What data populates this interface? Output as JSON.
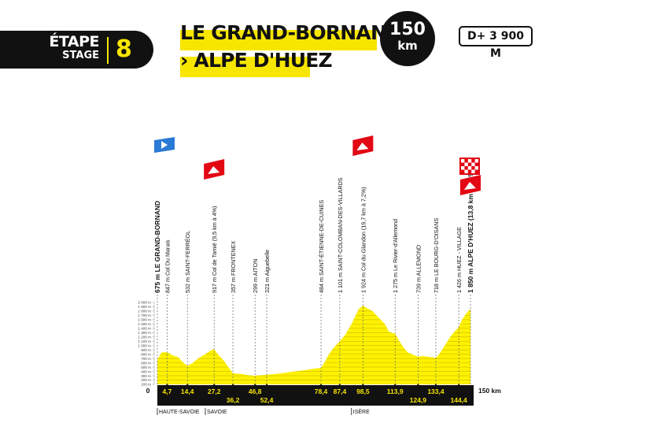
{
  "header": {
    "stage_word": "ÉTAPE",
    "stage_word_en": "STAGE",
    "stage_number": "8",
    "start_title": "LE GRAND-BORNAND",
    "finish_title": "› ALPE D'HUEZ",
    "distance_value": "150",
    "distance_unit": "km",
    "elevation_gain": "D+ 3 900 M"
  },
  "colors": {
    "profile_fill": "#fff200",
    "accent_yellow": "#f7e600",
    "black": "#111111",
    "start_flag_blue": "#2a7bd5",
    "climb_red": "#e30613"
  },
  "chart_data": {
    "type": "area",
    "title": "",
    "xlabel": "",
    "ylabel": "",
    "x_unit": "km",
    "y_unit": "m",
    "xlim": [
      0,
      150
    ],
    "ylim": [
      100,
      2000
    ],
    "y_ticks": [
      100,
      200,
      300,
      400,
      500,
      600,
      700,
      800,
      900,
      1000,
      1100,
      1200,
      1300,
      1400,
      1500,
      1600,
      1700,
      1800,
      1900,
      2000
    ],
    "y_tick_labels": [
      "100 m",
      "200 m",
      "300 m",
      "400 m",
      "500 m",
      "600 m",
      "700 m",
      "800 m",
      "900 m",
      "1 000 m",
      "1 100 m",
      "1 200 m",
      "1 300 m",
      "1 400 m",
      "1 500 m",
      "1 600 m",
      "1 700 m",
      "1 800 m",
      "1 900 m",
      "2 000 m"
    ],
    "x_start_label": "0",
    "x_end_label": "150 km",
    "profile": [
      [
        0,
        675
      ],
      [
        2,
        840
      ],
      [
        4.7,
        847
      ],
      [
        7,
        780
      ],
      [
        10,
        730
      ],
      [
        12,
        620
      ],
      [
        14.4,
        532
      ],
      [
        17,
        600
      ],
      [
        20,
        720
      ],
      [
        23,
        800
      ],
      [
        25,
        870
      ],
      [
        27.2,
        917
      ],
      [
        29,
        800
      ],
      [
        32,
        640
      ],
      [
        34,
        500
      ],
      [
        36.2,
        357
      ],
      [
        39,
        345
      ],
      [
        42,
        330
      ],
      [
        44,
        310
      ],
      [
        46.8,
        299
      ],
      [
        49,
        310
      ],
      [
        52.4,
        321
      ],
      [
        56,
        340
      ],
      [
        60,
        360
      ],
      [
        64,
        390
      ],
      [
        68,
        410
      ],
      [
        72,
        440
      ],
      [
        76,
        470
      ],
      [
        78.4,
        484
      ],
      [
        80,
        600
      ],
      [
        82,
        780
      ],
      [
        84,
        920
      ],
      [
        87.4,
        1101
      ],
      [
        90,
        1250
      ],
      [
        93,
        1500
      ],
      [
        95,
        1700
      ],
      [
        96.5,
        1850
      ],
      [
        98.5,
        1924
      ],
      [
        100,
        1880
      ],
      [
        103,
        1800
      ],
      [
        106,
        1650
      ],
      [
        109,
        1500
      ],
      [
        111,
        1320
      ],
      [
        113.9,
        1275
      ],
      [
        116,
        1100
      ],
      [
        118,
        950
      ],
      [
        120,
        840
      ],
      [
        122,
        800
      ],
      [
        124.9,
        739
      ],
      [
        127,
        760
      ],
      [
        130,
        740
      ],
      [
        133.4,
        718
      ],
      [
        135,
        800
      ],
      [
        137,
        950
      ],
      [
        139,
        1100
      ],
      [
        141,
        1250
      ],
      [
        144.4,
        1426
      ],
      [
        146,
        1600
      ],
      [
        148,
        1750
      ],
      [
        150,
        1850
      ]
    ],
    "waypoints": [
      {
        "km": 0,
        "label": "675 m LE GRAND-BORNAND",
        "type": "start"
      },
      {
        "km": 4.7,
        "label": "847 m Col Du Marais",
        "type": "pass"
      },
      {
        "km": 14.4,
        "label": "532 m SAINT-FERRÉOL",
        "type": "town"
      },
      {
        "km": 27.2,
        "label": "917 m Col de Tamié (9,5 km à 4%)",
        "type": "climb"
      },
      {
        "km": 36.2,
        "label": "357 m FRONTENEX",
        "type": "town"
      },
      {
        "km": 46.8,
        "label": "299 m AITON",
        "type": "town"
      },
      {
        "km": 52.4,
        "label": "321 m Aiguebelle",
        "type": "town"
      },
      {
        "km": 78.4,
        "label": "484 m SAINT-ÉTIENNE-DE-CUINES",
        "type": "town"
      },
      {
        "km": 87.4,
        "label": "1 101 m SAINT-COLOMBAN-DES-VILLARDS",
        "type": "town"
      },
      {
        "km": 98.5,
        "label": "1 924 m Col du Glandon (19,7 km à 7,2%)",
        "type": "climb"
      },
      {
        "km": 113.9,
        "label": "1 275 m Le Rivier-d'Allemond",
        "type": "town"
      },
      {
        "km": 124.9,
        "label": "739 m ALLEMOND",
        "type": "town"
      },
      {
        "km": 133.4,
        "label": "718 m LE BOURG-D'OISANS",
        "type": "town"
      },
      {
        "km": 144.4,
        "label": "1 426 m HUEZ - VILLAGE",
        "type": "town"
      },
      {
        "km": 150,
        "label": "1 850 m ALPE D'HUEZ (13,8 km à 8,1%)",
        "type": "finish"
      }
    ],
    "km_markers_upper": [
      {
        "km": 4.7,
        "label": "4,7"
      },
      {
        "km": 14.4,
        "label": "14,4"
      },
      {
        "km": 27.2,
        "label": "27,2"
      },
      {
        "km": 46.8,
        "label": "46,8"
      },
      {
        "km": 78.4,
        "label": "78,4"
      },
      {
        "km": 87.4,
        "label": "87,4"
      },
      {
        "km": 98.5,
        "label": "98,5"
      },
      {
        "km": 113.9,
        "label": "113,9"
      },
      {
        "km": 133.4,
        "label": "133,4"
      }
    ],
    "km_markers_lower": [
      {
        "km": 36.2,
        "label": "36,2"
      },
      {
        "km": 52.4,
        "label": "52,4"
      },
      {
        "km": 124.9,
        "label": "124,9"
      },
      {
        "km": 144.4,
        "label": "144,4"
      }
    ],
    "regions": [
      {
        "km": 0,
        "label": "HAUTE-SAVOIE"
      },
      {
        "km": 23,
        "label": "SAVOIE"
      },
      {
        "km": 93,
        "label": "ISÈRE"
      }
    ]
  }
}
